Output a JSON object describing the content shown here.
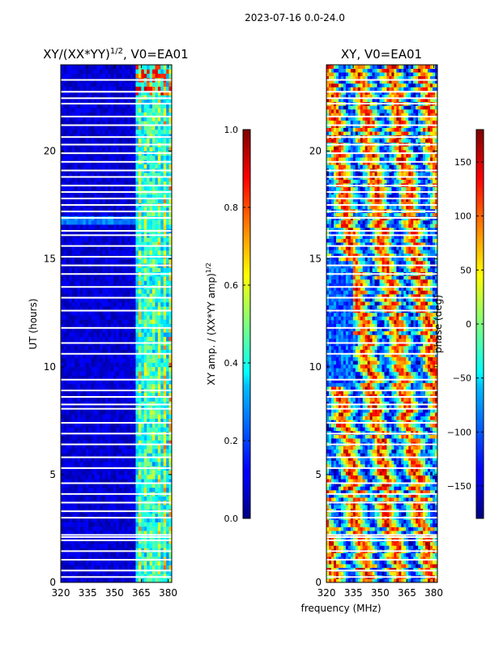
{
  "figure": {
    "title": "2023-07-16 0.0-24.0",
    "xlabel": "frequency (MHz)"
  },
  "chart_data": [
    {
      "type": "heatmap",
      "title_main": "XY/(XX*YY)",
      "title_exp": "1/2",
      "title_tail": ", V0=EA01",
      "xlabel": "",
      "ylabel": "UT (hours)",
      "xlim": [
        320,
        382
      ],
      "ylim": [
        0,
        24
      ],
      "xticks": [
        "320",
        "335",
        "350",
        "365",
        "380"
      ],
      "xtick_values": [
        320,
        335,
        350,
        365,
        380
      ],
      "yticks": [
        "0",
        "5",
        "10",
        "15",
        "20"
      ],
      "ytick_values": [
        0,
        5,
        10,
        15,
        20
      ],
      "colorbar": {
        "label_main": "XY amp. / (XX*YY amp)",
        "label_exp": "1/2",
        "range": [
          0.0,
          1.0
        ],
        "ticks": [
          "0.0",
          "0.2",
          "0.4",
          "0.6",
          "0.8",
          "1.0"
        ],
        "tick_values": [
          0.0,
          0.2,
          0.4,
          0.6,
          0.8,
          1.0
        ],
        "colormap": "jet"
      }
    },
    {
      "type": "heatmap",
      "title": "XY, V0=EA01",
      "xlabel": "",
      "ylabel": "",
      "xlim": [
        320,
        382
      ],
      "ylim": [
        0,
        24
      ],
      "xticks": [
        "320",
        "335",
        "350",
        "365",
        "380"
      ],
      "xtick_values": [
        320,
        335,
        350,
        365,
        380
      ],
      "yticks": [
        "0",
        "5",
        "10",
        "15",
        "20"
      ],
      "ytick_values": [
        0,
        5,
        10,
        15,
        20
      ],
      "colorbar": {
        "label": "phase (deg)",
        "range": [
          -180,
          180
        ],
        "ticks": [
          "−150",
          "−100",
          "−50",
          "0",
          "50",
          "100",
          "150"
        ],
        "tick_values": [
          -150,
          -100,
          -50,
          0,
          50,
          100,
          150
        ],
        "colormap": "jet"
      }
    }
  ]
}
